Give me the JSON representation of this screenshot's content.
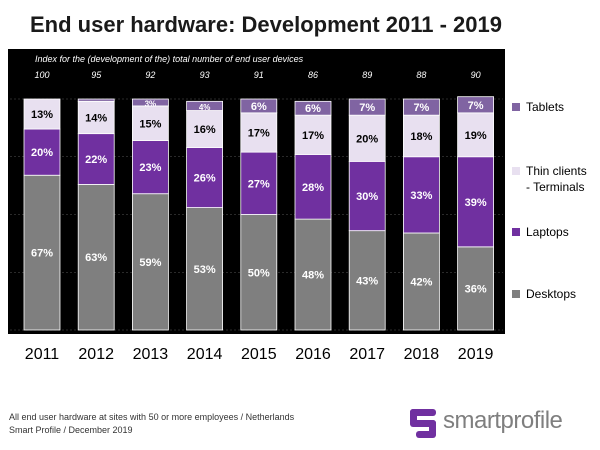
{
  "title": "End user hardware: Development 2011 - 2019",
  "subtitle": "Index for the (development of the) total number of end user devices",
  "footer": {
    "line1": "All end user hardware at sites with 50 or more employees / Netherlands",
    "line2": "Smart Profile / December 2019"
  },
  "logo": {
    "text": "smartprofile",
    "icon": "smartprofile-logo-icon"
  },
  "colors": {
    "desktops": "#7f7f7f",
    "laptops": "#7030a0",
    "thin_clients": "#e8e0f0",
    "tablets": "#8064a2",
    "background": "#000000",
    "logo": "#7030a0"
  },
  "chart_data": {
    "type": "bar",
    "stacked": true,
    "categories": [
      "2011",
      "2012",
      "2013",
      "2014",
      "2015",
      "2016",
      "2017",
      "2018",
      "2019"
    ],
    "index": [
      "100",
      "95",
      "92",
      "93",
      "91",
      "86",
      "89",
      "88",
      "90"
    ],
    "series": [
      {
        "name": "Desktops",
        "values": [
          67,
          63,
          59,
          53,
          50,
          48,
          43,
          42,
          36
        ],
        "labels": [
          "67%",
          "63%",
          "59%",
          "53%",
          "50%",
          "48%",
          "43%",
          "42%",
          "36%"
        ],
        "label_color": "#ffffff"
      },
      {
        "name": "Laptops",
        "values": [
          20,
          22,
          23,
          26,
          27,
          28,
          30,
          33,
          39
        ],
        "labels": [
          "20%",
          "22%",
          "23%",
          "26%",
          "27%",
          "28%",
          "30%",
          "33%",
          "39%"
        ],
        "label_color": "#ffffff"
      },
      {
        "name": "Thin clients\n- Terminals",
        "values": [
          13,
          14,
          15,
          16,
          17,
          17,
          20,
          18,
          19
        ],
        "labels": [
          "13%",
          "14%",
          "15%",
          "16%",
          "17%",
          "17%",
          "20%",
          "18%",
          "19%"
        ],
        "label_color": "#000000"
      },
      {
        "name": "Tablets",
        "values": [
          0,
          1,
          3,
          4,
          6,
          6,
          7,
          7,
          7
        ],
        "labels": [
          "",
          "",
          "3%",
          "4%",
          "6%",
          "6%",
          "7%",
          "7%",
          "7%"
        ],
        "label_color": "#ffffff"
      }
    ],
    "ylim": [
      0,
      100
    ],
    "grid": true,
    "legend": "right"
  }
}
